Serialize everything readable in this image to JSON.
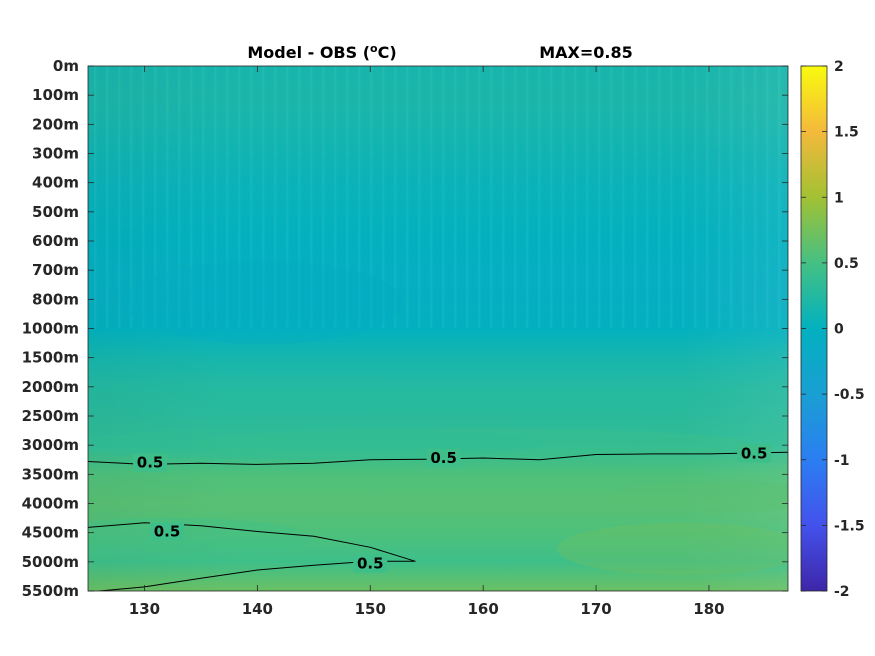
{
  "chart_data": {
    "type": "heatmap",
    "title": "Model - OBS (°C)",
    "title_parts": {
      "main": "Model - OBS (",
      "superscript": "o",
      "unit": "C)"
    },
    "annotation": "MAX=0.85",
    "xlabel": "",
    "ylabel": "",
    "xlim": [
      125,
      187
    ],
    "x_ticks": [
      130,
      140,
      150,
      160,
      170,
      180
    ],
    "y_ticks": [
      "0m",
      "100m",
      "200m",
      "300m",
      "400m",
      "500m",
      "600m",
      "700m",
      "800m",
      "1000m",
      "1500m",
      "2000m",
      "2500m",
      "3000m",
      "3500m",
      "4000m",
      "4500m",
      "5000m",
      "5500m"
    ],
    "colorbar": {
      "range": [
        -2,
        2
      ],
      "ticks": [
        "2",
        "1.5",
        "1",
        "0.5",
        "0",
        "-0.5",
        "-1",
        "-1.5",
        "-2"
      ]
    },
    "colormap": "parula",
    "depth_profile": [
      {
        "depth": "0m",
        "value": 0.15
      },
      {
        "depth": "100m",
        "value": 0.18
      },
      {
        "depth": "200m",
        "value": 0.15
      },
      {
        "depth": "300m",
        "value": 0.1
      },
      {
        "depth": "400m",
        "value": 0.05
      },
      {
        "depth": "500m",
        "value": 0.02
      },
      {
        "depth": "600m",
        "value": 0.0
      },
      {
        "depth": "700m",
        "value": -0.04
      },
      {
        "depth": "800m",
        "value": -0.05
      },
      {
        "depth": "1000m",
        "value": 0.0
      },
      {
        "depth": "1500m",
        "value": 0.15
      },
      {
        "depth": "2000m",
        "value": 0.25
      },
      {
        "depth": "2500m",
        "value": 0.3
      },
      {
        "depth": "3000m",
        "value": 0.35
      },
      {
        "depth": "3500m",
        "value": 0.55
      },
      {
        "depth": "4000m",
        "value": 0.6
      },
      {
        "depth": "4500m",
        "value": 0.55
      },
      {
        "depth": "5000m",
        "value": 0.45
      },
      {
        "depth": "5500m",
        "value": 0.7
      }
    ],
    "contours": [
      {
        "level": "0.5",
        "label_position": [
          130.5,
          "3300m"
        ],
        "points": [
          [
            125,
            "3280m"
          ],
          [
            130,
            "3330m"
          ],
          [
            135,
            "3310m"
          ],
          [
            140,
            "3330m"
          ],
          [
            145,
            "3310m"
          ],
          [
            150,
            "3250m"
          ],
          [
            155,
            "3240m"
          ],
          [
            160,
            "3220m"
          ],
          [
            165,
            "3250m"
          ],
          [
            170,
            "3160m"
          ],
          [
            175,
            "3150m"
          ],
          [
            180,
            "3150m"
          ],
          [
            187,
            "3120m"
          ]
        ]
      },
      {
        "level": "0.5",
        "label_position": [
          132,
          "4480m"
        ],
        "points": [
          [
            125,
            "4410m"
          ],
          [
            130,
            "4330m"
          ],
          [
            135,
            "4380m"
          ],
          [
            140,
            "4480m"
          ],
          [
            145,
            "4560m"
          ],
          [
            150,
            "4750m"
          ],
          [
            154,
            "4990m"
          ],
          [
            150,
            "4990m"
          ],
          [
            145,
            "5060m"
          ],
          [
            140,
            "5140m"
          ],
          [
            135,
            "5280m"
          ],
          [
            130,
            "5430m"
          ],
          [
            126,
            "5500m"
          ]
        ]
      }
    ],
    "contour_labels": [
      {
        "text": "0.5",
        "x": 130.5,
        "y": "3300m"
      },
      {
        "text": "0.5",
        "x": 156.5,
        "y": "3220m"
      },
      {
        "text": "0.5",
        "x": 184,
        "y": "3140m"
      },
      {
        "text": "0.5",
        "x": 132,
        "y": "4480m"
      },
      {
        "text": "0.5",
        "x": 150,
        "y": "5030m"
      }
    ]
  }
}
